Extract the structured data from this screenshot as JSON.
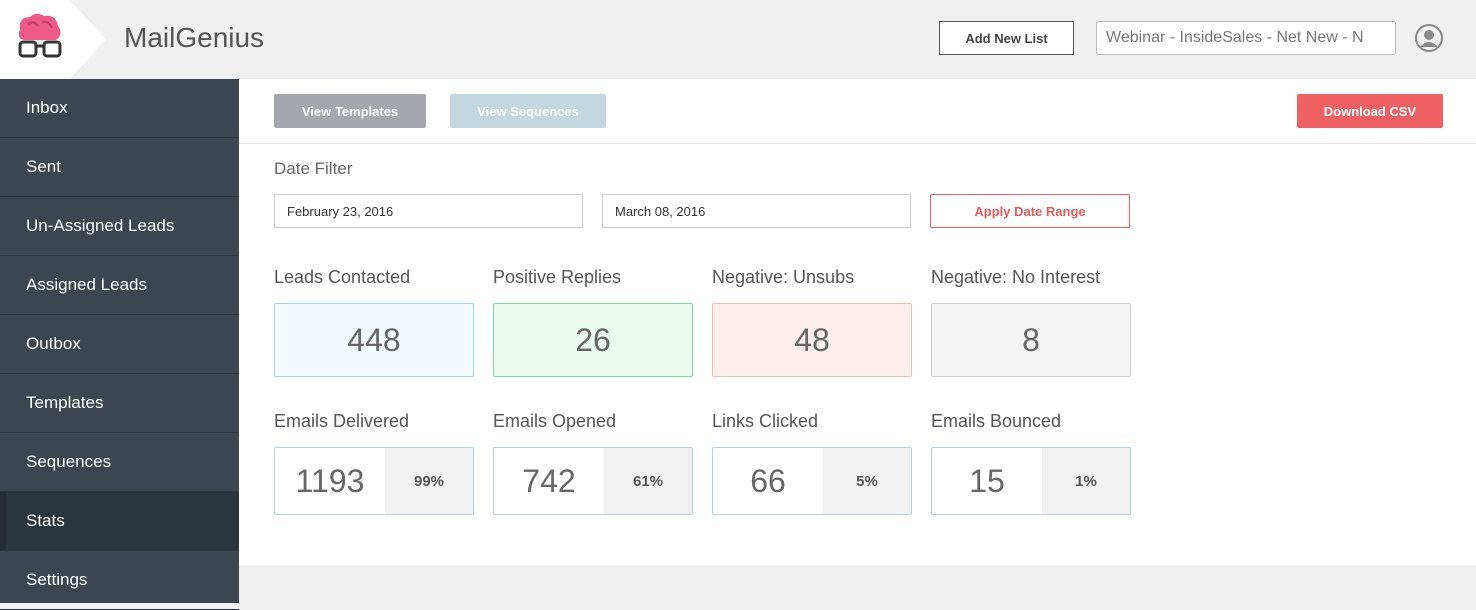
{
  "header": {
    "app_name": "MailGenius",
    "add_button": "Add New List",
    "list_select": "Webinar - InsideSales - Net New - N"
  },
  "sidebar": {
    "items": [
      "Inbox",
      "Sent",
      "Un-Assigned Leads",
      "Assigned Leads",
      "Outbox",
      "Templates",
      "Sequences",
      "Stats",
      "Settings"
    ],
    "active_index": 7
  },
  "toolbar": {
    "view_templates": "View Templates",
    "view_sequences": "View Sequences",
    "download": "Download CSV"
  },
  "date_filter": {
    "label": "Date Filter",
    "start": "February 23, 2016",
    "end": "March 08, 2016",
    "apply": "Apply Date Range"
  },
  "lead_stats": [
    {
      "label": "Leads Contacted",
      "value": "448"
    },
    {
      "label": "Positive Replies",
      "value": "26"
    },
    {
      "label": "Negative: Unsubs",
      "value": "48"
    },
    {
      "label": "Negative: No Interest",
      "value": "8"
    }
  ],
  "email_stats": [
    {
      "label": "Emails Delivered",
      "value": "1193",
      "percent": "99%"
    },
    {
      "label": "Emails Opened",
      "value": "742",
      "percent": "61%"
    },
    {
      "label": "Links Clicked",
      "value": "66",
      "percent": "5%"
    },
    {
      "label": "Emails Bounced",
      "value": "15",
      "percent": "1%"
    }
  ]
}
